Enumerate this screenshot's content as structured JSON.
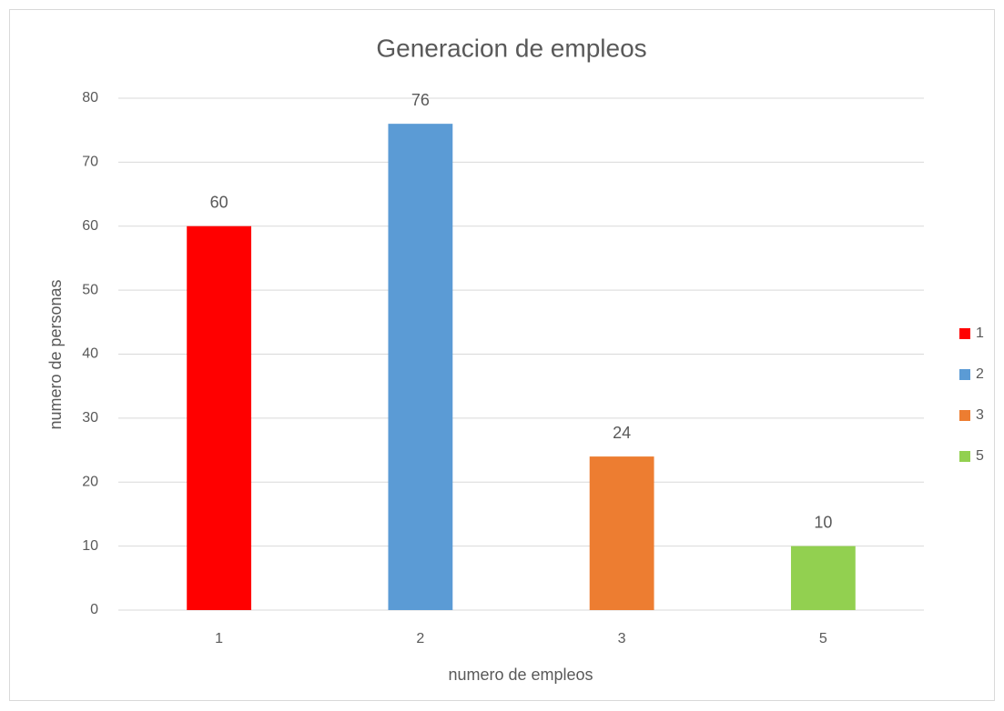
{
  "chart_data": {
    "type": "bar",
    "title": "Generacion de empleos",
    "x_label": "numero de empleos",
    "y_label": "numero de personas",
    "categories": [
      "1",
      "2",
      "3",
      "5"
    ],
    "values": [
      60,
      76,
      24,
      10
    ],
    "colors": [
      "#ff0000",
      "#5b9bd5",
      "#ed7d31",
      "#92d050"
    ],
    "ylim": [
      0,
      80
    ],
    "yticks": [
      0,
      10,
      20,
      30,
      40,
      50,
      60,
      70,
      80
    ],
    "grid": true,
    "legend": "right"
  }
}
